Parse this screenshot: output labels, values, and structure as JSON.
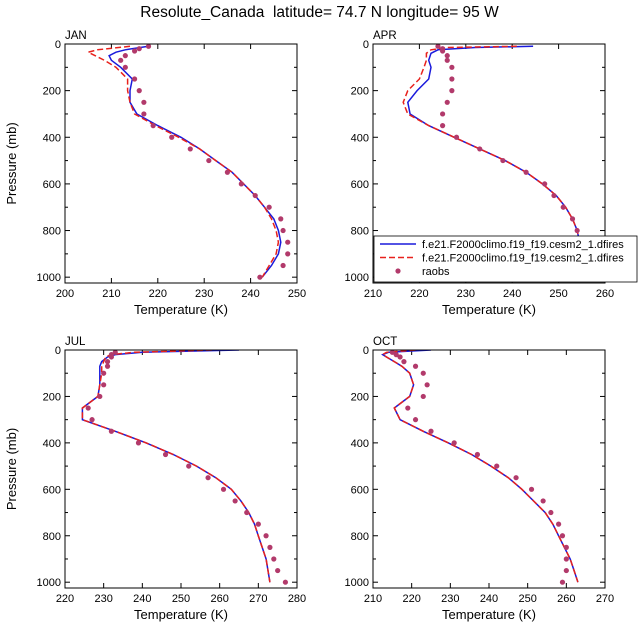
{
  "figure_title": "Resolute_Canada  latitude= 74.7 N longitude= 95 W",
  "legend": {
    "items": [
      {
        "label": "f.e21.F2000climo.f19_f19.cesm2_1.dfires",
        "color": "#1a1adc",
        "style": "solid"
      },
      {
        "label": "f.e21.F2000climo.f19_f19.cesm2_1.dfires",
        "color": "#e8211c",
        "style": "dashed"
      },
      {
        "label": "raobs",
        "color": "#b23a6b",
        "style": "marker"
      }
    ]
  },
  "chart_data": [
    {
      "type": "line",
      "title": "JAN",
      "xlabel": "Temperature (K)",
      "ylabel": "Pressure (mb)",
      "xlim": [
        200,
        250
      ],
      "ylim": [
        0,
        1025
      ],
      "y_reversed": true,
      "xticks": [
        200,
        210,
        220,
        230,
        240,
        250
      ],
      "yticks": [
        0,
        200,
        400,
        600,
        800,
        1000
      ],
      "series": [
        {
          "key": "model1",
          "y": [
            10,
            25,
            35,
            50,
            70,
            100,
            150,
            200,
            250,
            300,
            350,
            400,
            450,
            500,
            550,
            600,
            650,
            700,
            750,
            800,
            850,
            900,
            950,
            1000
          ],
          "x": [
            218,
            213,
            211,
            209.5,
            210,
            212,
            214.5,
            214,
            214,
            215.5,
            220,
            225,
            229,
            232.5,
            236,
            238.5,
            241,
            243,
            245,
            246,
            246.5,
            246,
            244.5,
            242.5
          ]
        },
        {
          "key": "model2",
          "y": [
            10,
            25,
            35,
            50,
            70,
            100,
            150,
            200,
            250,
            300,
            350,
            400,
            450,
            500,
            550,
            600,
            650,
            700,
            750,
            800,
            850,
            900,
            950,
            1000
          ],
          "x": [
            214,
            207,
            205,
            206.5,
            208.5,
            211,
            213.5,
            213.5,
            214,
            215,
            219.5,
            224.5,
            229,
            232.5,
            236,
            238.5,
            241,
            243,
            244.5,
            245.5,
            246,
            245.5,
            244,
            242.5
          ]
        },
        {
          "key": "obs",
          "y": [
            10,
            20,
            30,
            50,
            70,
            100,
            150,
            200,
            250,
            300,
            350,
            400,
            450,
            500,
            550,
            600,
            650,
            700,
            750,
            800,
            850,
            900,
            950,
            1000
          ],
          "x": [
            218,
            216,
            215,
            213,
            212,
            213,
            215,
            216,
            217,
            217,
            219,
            223,
            227,
            231,
            235,
            238,
            241,
            244,
            246.5,
            247,
            248,
            248,
            247,
            242
          ]
        }
      ]
    },
    {
      "type": "line",
      "title": "APR",
      "xlabel": "Temperature (K)",
      "ylabel": "",
      "xlim": [
        210,
        260
      ],
      "ylim": [
        0,
        1025
      ],
      "y_reversed": true,
      "xticks": [
        210,
        220,
        230,
        240,
        250,
        260
      ],
      "yticks": [
        0,
        200,
        400,
        600,
        800,
        1000
      ],
      "series": [
        {
          "key": "model1",
          "y": [
            10,
            15,
            25,
            40,
            70,
            100,
            150,
            200,
            250,
            300,
            350,
            400,
            450,
            500,
            550,
            600,
            650,
            700,
            750,
            800,
            850,
            900,
            950,
            1000
          ],
          "x": [
            244.5,
            232,
            224,
            222.5,
            222,
            222.5,
            222,
            219.5,
            217.5,
            218,
            222,
            227.5,
            233,
            238.5,
            243,
            246.5,
            249.5,
            251.5,
            253,
            254,
            254.5,
            254.5,
            254.5,
            255
          ]
        },
        {
          "key": "model2",
          "y": [
            10,
            15,
            25,
            40,
            70,
            100,
            150,
            200,
            250,
            300,
            350,
            400,
            450,
            500,
            550,
            600,
            650,
            700,
            750,
            800,
            850,
            900,
            950,
            1000
          ],
          "x": [
            241,
            226,
            222.5,
            221.5,
            221.5,
            221,
            220,
            217.5,
            216.5,
            217.5,
            222,
            227.5,
            233,
            238.5,
            243,
            246.5,
            249.5,
            251.5,
            253,
            254,
            254.5,
            255,
            255.5,
            256
          ]
        },
        {
          "key": "obs",
          "y": [
            10,
            20,
            30,
            50,
            70,
            100,
            150,
            200,
            250,
            300,
            350,
            400,
            450,
            500,
            550,
            600,
            650,
            700,
            750,
            800,
            850,
            900,
            950,
            1000
          ],
          "x": [
            224,
            225,
            225,
            226,
            226,
            227,
            227,
            227,
            226,
            225,
            225,
            228,
            233,
            238,
            243,
            247,
            249,
            251,
            253,
            254,
            254,
            254,
            254,
            253
          ]
        }
      ]
    },
    {
      "type": "line",
      "title": "JUL",
      "xlabel": "Temperature (K)",
      "ylabel": "Pressure (mb)",
      "xlim": [
        220,
        280
      ],
      "ylim": [
        0,
        1025
      ],
      "y_reversed": true,
      "xticks": [
        220,
        230,
        240,
        250,
        260,
        270,
        280
      ],
      "yticks": [
        0,
        200,
        400,
        600,
        800,
        1000
      ],
      "series": [
        {
          "key": "model1",
          "y": [
            0,
            10,
            20,
            30,
            50,
            70,
            100,
            150,
            200,
            250,
            300,
            350,
            400,
            450,
            500,
            550,
            600,
            650,
            700,
            750,
            800,
            850,
            900,
            950,
            1000
          ],
          "x": [
            265,
            240,
            233,
            231,
            229.5,
            229,
            229,
            229,
            228.5,
            224.5,
            224.5,
            233,
            241,
            248,
            254,
            259,
            263,
            265.5,
            267.5,
            269,
            270,
            271,
            272,
            272.5,
            273
          ]
        },
        {
          "key": "model2",
          "y": [
            0,
            10,
            20,
            30,
            50,
            70,
            100,
            150,
            200,
            250,
            300,
            350,
            400,
            450,
            500,
            550,
            600,
            650,
            700,
            750,
            800,
            850,
            900,
            950,
            1000
          ],
          "x": [
            258,
            238,
            232,
            230.5,
            230,
            229.5,
            229.5,
            229,
            228.5,
            224.5,
            224.5,
            233,
            241,
            248,
            254,
            259,
            263,
            265.5,
            267.5,
            269,
            270,
            271,
            272,
            272.5,
            273
          ]
        },
        {
          "key": "obs",
          "y": [
            10,
            20,
            30,
            50,
            70,
            100,
            150,
            200,
            250,
            300,
            350,
            400,
            450,
            500,
            550,
            600,
            650,
            700,
            750,
            800,
            850,
            900,
            950,
            1000
          ],
          "x": [
            233,
            232,
            232,
            231,
            231,
            230,
            230,
            229,
            226,
            227,
            232,
            239,
            246,
            252,
            257,
            261,
            264,
            267,
            270,
            272,
            273,
            274,
            275,
            277
          ]
        }
      ]
    },
    {
      "type": "line",
      "title": "OCT",
      "xlabel": "Temperature (K)",
      "ylabel": "",
      "xlim": [
        210,
        270
      ],
      "ylim": [
        0,
        1025
      ],
      "y_reversed": true,
      "xticks": [
        210,
        220,
        230,
        240,
        250,
        260,
        270
      ],
      "yticks": [
        0,
        200,
        400,
        600,
        800,
        1000
      ],
      "series": [
        {
          "key": "model1",
          "y": [
            0,
            10,
            20,
            30,
            50,
            70,
            100,
            150,
            200,
            250,
            300,
            350,
            400,
            450,
            500,
            550,
            600,
            650,
            700,
            750,
            800,
            850,
            900,
            950,
            1000
          ],
          "x": [
            225,
            214,
            212.5,
            213.5,
            215.5,
            217.5,
            219.5,
            220.5,
            219.5,
            215.5,
            217,
            223,
            229.5,
            235.5,
            240.5,
            245,
            248.5,
            251.5,
            254.5,
            256.5,
            258,
            259.5,
            261,
            262,
            263
          ]
        },
        {
          "key": "model2",
          "y": [
            0,
            10,
            20,
            30,
            50,
            70,
            100,
            150,
            200,
            250,
            300,
            350,
            400,
            450,
            500,
            550,
            600,
            650,
            700,
            750,
            800,
            850,
            900,
            950,
            1000
          ],
          "x": [
            221,
            213.5,
            212.5,
            213.5,
            215.5,
            217.5,
            219.5,
            220.5,
            219.5,
            215.5,
            217,
            223,
            229.5,
            235.5,
            240.5,
            245,
            248.5,
            251.5,
            254.5,
            256.5,
            258,
            259.5,
            261,
            262,
            263
          ]
        },
        {
          "key": "obs",
          "y": [
            10,
            20,
            30,
            50,
            70,
            100,
            150,
            200,
            250,
            300,
            350,
            400,
            450,
            500,
            550,
            600,
            650,
            700,
            750,
            800,
            850,
            900,
            950,
            1000
          ],
          "x": [
            215,
            216,
            217,
            218,
            221,
            223,
            224,
            223,
            219,
            221,
            225,
            231,
            237,
            242,
            247,
            251,
            254,
            256,
            258,
            259,
            260,
            260,
            260,
            259
          ]
        }
      ]
    }
  ]
}
